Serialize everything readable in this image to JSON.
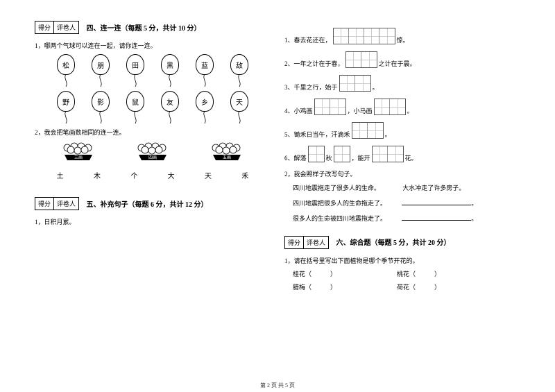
{
  "scorebox": {
    "score": "得分",
    "grader": "评卷人"
  },
  "section4": {
    "title": "四、连一连（每题 5 分，共计 10 分）",
    "q1": "1，哪两个气球可以连在一起，请你连一连。",
    "balloons_top": [
      "松",
      "朋",
      "田",
      "黑",
      "蓝",
      "敌"
    ],
    "balloons_bottom": [
      "野",
      "影",
      "鼠",
      "友",
      "乡",
      "天"
    ],
    "q2": "2，我会把笔画数相同的连一连。",
    "flower_labels": [
      "三画",
      "四画",
      "五画"
    ],
    "chars": [
      "土",
      "木",
      "个",
      "大",
      "天",
      "禾"
    ]
  },
  "section5": {
    "title": "五、补充句子（每题 6 分，共计 12 分）",
    "q1": "1，日积月累。",
    "lines": [
      {
        "pre": "1、春去花还在，",
        "cells": 4,
        "post": "惊。"
      },
      {
        "pre": "2、一年之计在于春，",
        "cells": 2,
        "post": "之计在于晨。"
      },
      {
        "pre": "3、千里之行，始于",
        "cells": 2,
        "post": "。"
      },
      {
        "pre": "4、小鸡画",
        "cells": 2,
        "mid": "，小马画",
        "cells2": 2,
        "post": "。"
      },
      {
        "pre": "5、锄禾日当午，汗滴禾",
        "cells": 2,
        "post": "。"
      },
      {
        "pre": "6、解落",
        "cells": 1,
        "mid": "秋",
        "cells2": 1,
        "mid2": "，能开",
        "cells3": 2,
        "post": "花。"
      }
    ],
    "q2": "2，我会照样子改写句子。",
    "example_a": "四川地震拖走了很多人的生命。",
    "example_b": "大水冲走了许多房子。",
    "rewrite1": "四川地震把很多人的生命拖走了。",
    "rewrite2": "很多人的生命被四川地震拖走了。"
  },
  "section6": {
    "title": "六、综合题（每题 5 分，共计 20 分）",
    "q1": "1，请在括号里写出下面植物是哪个季节开花的。",
    "plants": [
      [
        "桂花（　　　）",
        "桃花（　　　）"
      ],
      [
        "腊梅（　　　）",
        "荷花（　　　）"
      ]
    ]
  },
  "footer": "第 2 页 共 5 页"
}
